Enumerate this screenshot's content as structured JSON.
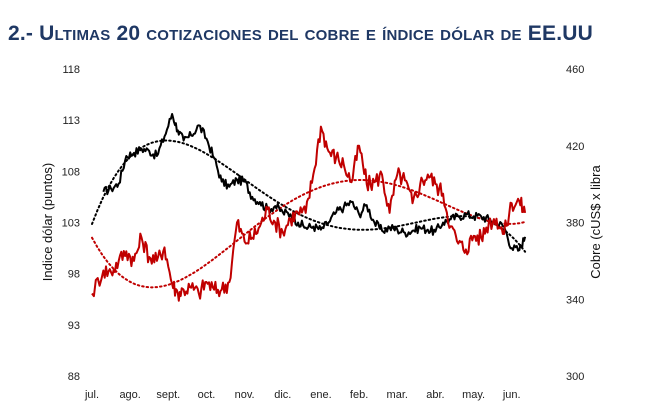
{
  "title": "2.- Ultimas 20 cotizaciones del cobre e índice dólar de EE.UU",
  "chart_data": {
    "type": "line",
    "ylabel": "Indice dólar (puntos)",
    "y2label": "Cobre (cUS$ x libra",
    "ylim": [
      88,
      118
    ],
    "y2lim": [
      300,
      460
    ],
    "yticks": [
      "88",
      "93",
      "98",
      "103",
      "108",
      "113",
      "118"
    ],
    "y2ticks": [
      "300",
      "340",
      "380",
      "420",
      "460"
    ],
    "categories": [
      "jul.",
      "ago.",
      "sept.",
      "oct.",
      "nov.",
      "dic.",
      "ene.",
      "feb.",
      "mar.",
      "abr.",
      "may.",
      "jun."
    ],
    "grid": false,
    "series": [
      {
        "axis": "left",
        "color": "#000000",
        "x": [
          0.0,
          0.3,
          0.5,
          0.7,
          0.9,
          1.1,
          1.3,
          1.5,
          1.7,
          1.9,
          2.1,
          2.25,
          2.4,
          2.6,
          2.8,
          3.0,
          3.2,
          3.4,
          3.6,
          3.8,
          4.0,
          4.2,
          4.4,
          4.6,
          4.8,
          5.0,
          5.2,
          5.4,
          5.6,
          5.8,
          6.0,
          6.2,
          6.4,
          6.6,
          6.8,
          7.0,
          7.2,
          7.4,
          7.6,
          7.8,
          8.0,
          8.2,
          8.4,
          8.6,
          8.8,
          9.0,
          9.2,
          9.4,
          9.6,
          9.8,
          10.0,
          10.2,
          10.4,
          10.6,
          10.8,
          11.0,
          11.2,
          11.35
        ],
        "values": [
          null,
          106.0,
          106.3,
          106.8,
          109.5,
          109.8,
          110.2,
          110.0,
          109.5,
          111.4,
          113.6,
          112.0,
          111.0,
          111.5,
          112.5,
          111.2,
          109.3,
          107.0,
          106.5,
          107.2,
          107.0,
          105.5,
          105.0,
          104.3,
          104.6,
          104.0,
          103.8,
          103.0,
          102.5,
          102.6,
          102.3,
          103.0,
          104.0,
          104.5,
          105.0,
          103.8,
          104.7,
          103.0,
          102.2,
          102.5,
          102.3,
          102.0,
          102.2,
          102.5,
          102.3,
          102.1,
          103.0,
          103.3,
          103.6,
          103.8,
          103.6,
          103.6,
          103.3,
          103.0,
          102.6,
          100.5,
          100.3,
          101.6
        ]
      },
      {
        "axis": "right",
        "color": "#c00000",
        "x": [
          0.0,
          0.3,
          0.5,
          0.7,
          0.9,
          1.1,
          1.3,
          1.5,
          1.7,
          1.9,
          2.1,
          2.25,
          2.4,
          2.6,
          2.8,
          3.0,
          3.2,
          3.4,
          3.6,
          3.8,
          4.0,
          4.2,
          4.4,
          4.6,
          4.8,
          5.0,
          5.2,
          5.4,
          5.6,
          5.8,
          6.0,
          6.2,
          6.4,
          6.6,
          6.8,
          7.0,
          7.2,
          7.4,
          7.6,
          7.8,
          8.0,
          8.2,
          8.4,
          8.6,
          8.8,
          9.0,
          9.2,
          9.4,
          9.6,
          9.8,
          10.0,
          10.2,
          10.4,
          10.6,
          10.8,
          11.0,
          11.2,
          11.35
        ],
        "values": [
          343,
          355,
          354,
          360,
          365,
          360,
          372,
          362,
          360,
          367,
          348,
          343,
          345,
          346,
          343,
          349,
          345,
          345,
          349,
          380,
          370,
          372,
          378,
          387,
          380,
          375,
          382,
          385,
          385,
          405,
          430,
          417,
          414,
          410,
          401,
          420,
          400,
          401,
          405,
          385,
          405,
          402,
          390,
          400,
          405,
          400,
          395,
          378,
          369,
          366,
          373,
          372,
          380,
          382,
          374,
          390,
          391,
          385
        ]
      }
    ],
    "trendlines": [
      {
        "axis": "left",
        "color": "#000000",
        "style": "dotted"
      },
      {
        "axis": "right",
        "color": "#c00000",
        "style": "dotted"
      }
    ]
  }
}
